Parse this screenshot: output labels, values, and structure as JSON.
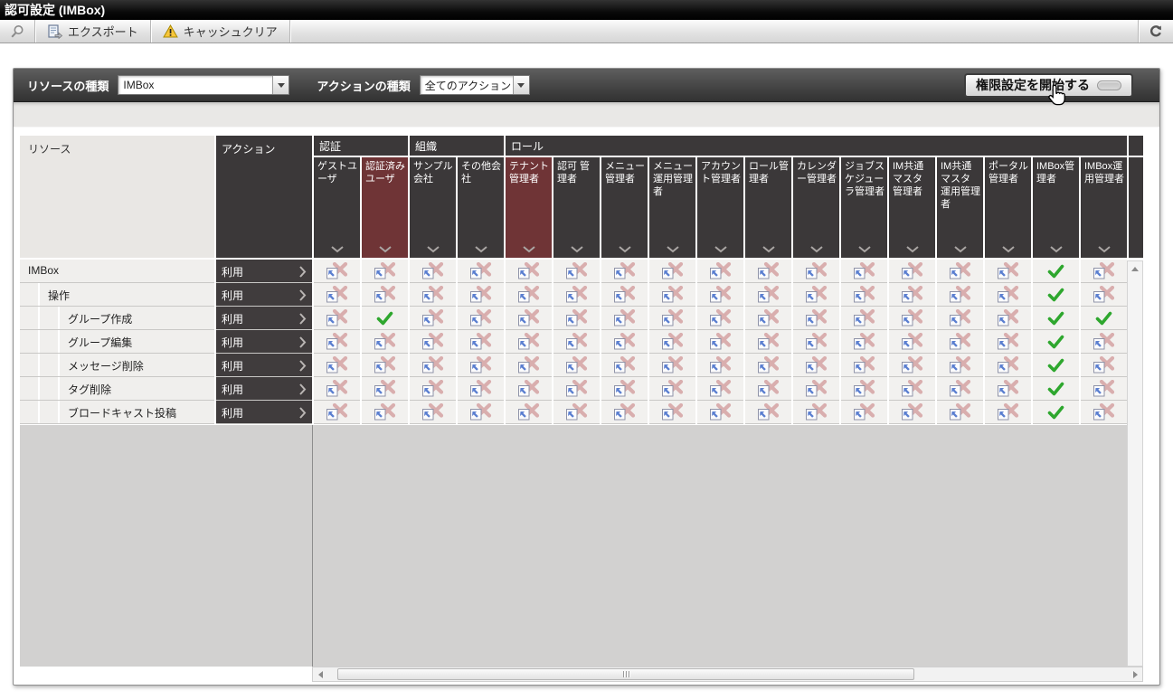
{
  "window": {
    "title": "認可設定 (IMBox)"
  },
  "toolbar": {
    "search_icon": "magnifier",
    "export_label": "エクスポート",
    "cache_clear_label": "キャッシュクリア",
    "refresh_icon": "circular-arrow"
  },
  "filter": {
    "resource_type_label": "リソースの種類",
    "resource_type_value": "IMBox",
    "action_type_label": "アクションの種類",
    "action_type_value": "全てのアクション",
    "start_button_label": "権限設定を開始する"
  },
  "colors": {
    "header_dark": "#3b3839",
    "highlight_maroon": "#6f3436",
    "allow_green": "#2ea72e",
    "deny_pink": "#d9aeae",
    "inherit_blue": "#5b7fd0"
  },
  "grid": {
    "resource_header": "リソース",
    "action_header": "アクション",
    "action_value": "利用",
    "groups": [
      {
        "label": "認証",
        "span": 2
      },
      {
        "label": "組織",
        "span": 2
      },
      {
        "label": "ロール",
        "span": 13
      }
    ],
    "columns": [
      {
        "label": "ゲストユーザ",
        "highlighted": false
      },
      {
        "label": "認証済みユーザ",
        "highlighted": true
      },
      {
        "label": "サンプル会社",
        "highlighted": false
      },
      {
        "label": "その他会社",
        "highlighted": false
      },
      {
        "label": "テナント管理者",
        "highlighted": true
      },
      {
        "label": "認可 管理者",
        "highlighted": false
      },
      {
        "label": "メニュー管理者",
        "highlighted": false
      },
      {
        "label": "メニュー運用管理者",
        "highlighted": false
      },
      {
        "label": "アカウント管理者",
        "highlighted": false
      },
      {
        "label": "ロール管理者",
        "highlighted": false
      },
      {
        "label": "カレンダー管理者",
        "highlighted": false
      },
      {
        "label": "ジョブスケジューラ管理者",
        "highlighted": false
      },
      {
        "label": "IM共通マスタ 管理者",
        "highlighted": false
      },
      {
        "label": "IM共通マスタ 運用管理者",
        "highlighted": false
      },
      {
        "label": "ポータル管理者",
        "highlighted": false
      },
      {
        "label": "IMBox管理者",
        "highlighted": false
      },
      {
        "label": "IMBox運用管理者",
        "highlighted": false
      }
    ],
    "cell_legend": {
      "x": "deny-inherited",
      "v": "allow"
    },
    "rows": [
      {
        "label": "IMBox",
        "indent": 0,
        "action": "利用",
        "cells": [
          "x",
          "x",
          "x",
          "x",
          "x",
          "x",
          "x",
          "x",
          "x",
          "x",
          "x",
          "x",
          "x",
          "x",
          "x",
          "v",
          "x"
        ]
      },
      {
        "label": "操作",
        "indent": 1,
        "action": "利用",
        "cells": [
          "x",
          "x",
          "x",
          "x",
          "x",
          "x",
          "x",
          "x",
          "x",
          "x",
          "x",
          "x",
          "x",
          "x",
          "x",
          "v",
          "x"
        ]
      },
      {
        "label": "グループ作成",
        "indent": 2,
        "action": "利用",
        "cells": [
          "x",
          "v",
          "x",
          "x",
          "x",
          "x",
          "x",
          "x",
          "x",
          "x",
          "x",
          "x",
          "x",
          "x",
          "x",
          "v",
          "v"
        ]
      },
      {
        "label": "グループ編集",
        "indent": 2,
        "action": "利用",
        "cells": [
          "x",
          "x",
          "x",
          "x",
          "x",
          "x",
          "x",
          "x",
          "x",
          "x",
          "x",
          "x",
          "x",
          "x",
          "x",
          "v",
          "x"
        ]
      },
      {
        "label": "メッセージ削除",
        "indent": 2,
        "action": "利用",
        "cells": [
          "x",
          "x",
          "x",
          "x",
          "x",
          "x",
          "x",
          "x",
          "x",
          "x",
          "x",
          "x",
          "x",
          "x",
          "x",
          "v",
          "x"
        ]
      },
      {
        "label": "タグ削除",
        "indent": 2,
        "action": "利用",
        "cells": [
          "x",
          "x",
          "x",
          "x",
          "x",
          "x",
          "x",
          "x",
          "x",
          "x",
          "x",
          "x",
          "x",
          "x",
          "x",
          "v",
          "x"
        ]
      },
      {
        "label": "ブロードキャスト投稿",
        "indent": 2,
        "action": "利用",
        "cells": [
          "x",
          "x",
          "x",
          "x",
          "x",
          "x",
          "x",
          "x",
          "x",
          "x",
          "x",
          "x",
          "x",
          "x",
          "x",
          "v",
          "x"
        ]
      }
    ]
  }
}
